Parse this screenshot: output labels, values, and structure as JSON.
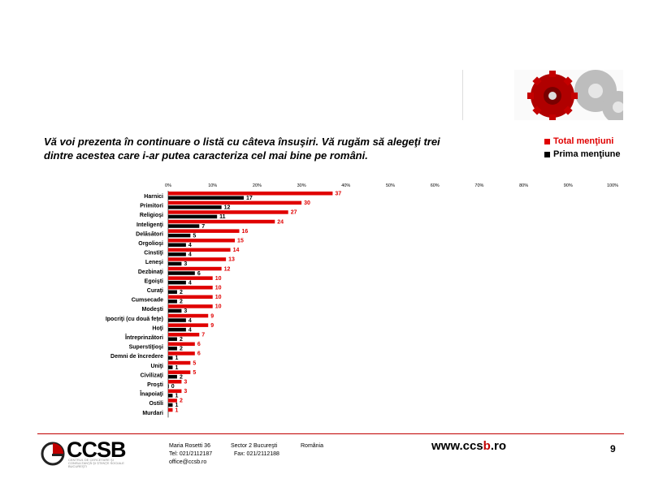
{
  "question": "Vă voi prezenta în continuare o listă cu câteva însuşiri. Vă rugăm să alegeţi trei dintre acestea care i-ar putea caracteriza cel mai bine pe români.",
  "colors": {
    "accent": "#e00000",
    "secondary": "#000000",
    "divider": "#c00000"
  },
  "chart_data": {
    "type": "bar",
    "orientation": "horizontal",
    "xlim": [
      0,
      100
    ],
    "ticks": [
      "0%",
      "10%",
      "20%",
      "30%",
      "40%",
      "50%",
      "60%",
      "70%",
      "80%",
      "90%",
      "100%"
    ],
    "categories": [
      "Harnici",
      "Primitori",
      "Religioşi",
      "Inteligenţi",
      "Delăsători",
      "Orgolioşi",
      "Cinstiţi",
      "Leneşi",
      "Dezbinaţi",
      "Egoişti",
      "Curaţi",
      "Cumsecade",
      "Modeşti",
      "Ipocriţi (cu două feţe)",
      "Hoţi",
      "Întreprinzători",
      "Superstiţioşi",
      "Demni de încredere",
      "Uniţi",
      "Civilizaţi",
      "Proşti",
      "Înapoiaţi",
      "Ostili",
      "Murdari"
    ],
    "series": [
      {
        "name": "Total menţiuni",
        "color": "#e00000",
        "values": [
          37,
          30,
          27,
          24,
          16,
          15,
          14,
          13,
          12,
          10,
          10,
          10,
          10,
          9,
          9,
          7,
          6,
          6,
          5,
          5,
          3,
          3,
          2,
          1
        ]
      },
      {
        "name": "Prima menţiune",
        "color": "#000000",
        "values": [
          17,
          12,
          11,
          7,
          5,
          4,
          4,
          3,
          6,
          4,
          2,
          2,
          3,
          4,
          4,
          2,
          2,
          1,
          1,
          2,
          0,
          1,
          1,
          null
        ]
      }
    ],
    "legend": "top-right"
  },
  "footer": {
    "logo": "CCSB",
    "logo_sub": "CENTRUL DE CERCETARE ŞI CONSULTANŢĂ ŞI ȘTIINŢE SOCIALE BUCUREŞTI",
    "address_street": "Maria Rosetti 36",
    "address_sector": "Sector 2 Bucureşti",
    "address_country": "România",
    "tel": "Tel: 021/2112187",
    "fax": "Fax: 021/2112188",
    "email": "office@ccsb.ro",
    "website_pre": "www.ccs",
    "website_b": "b",
    "website_post": ".ro",
    "page_number": "9"
  }
}
